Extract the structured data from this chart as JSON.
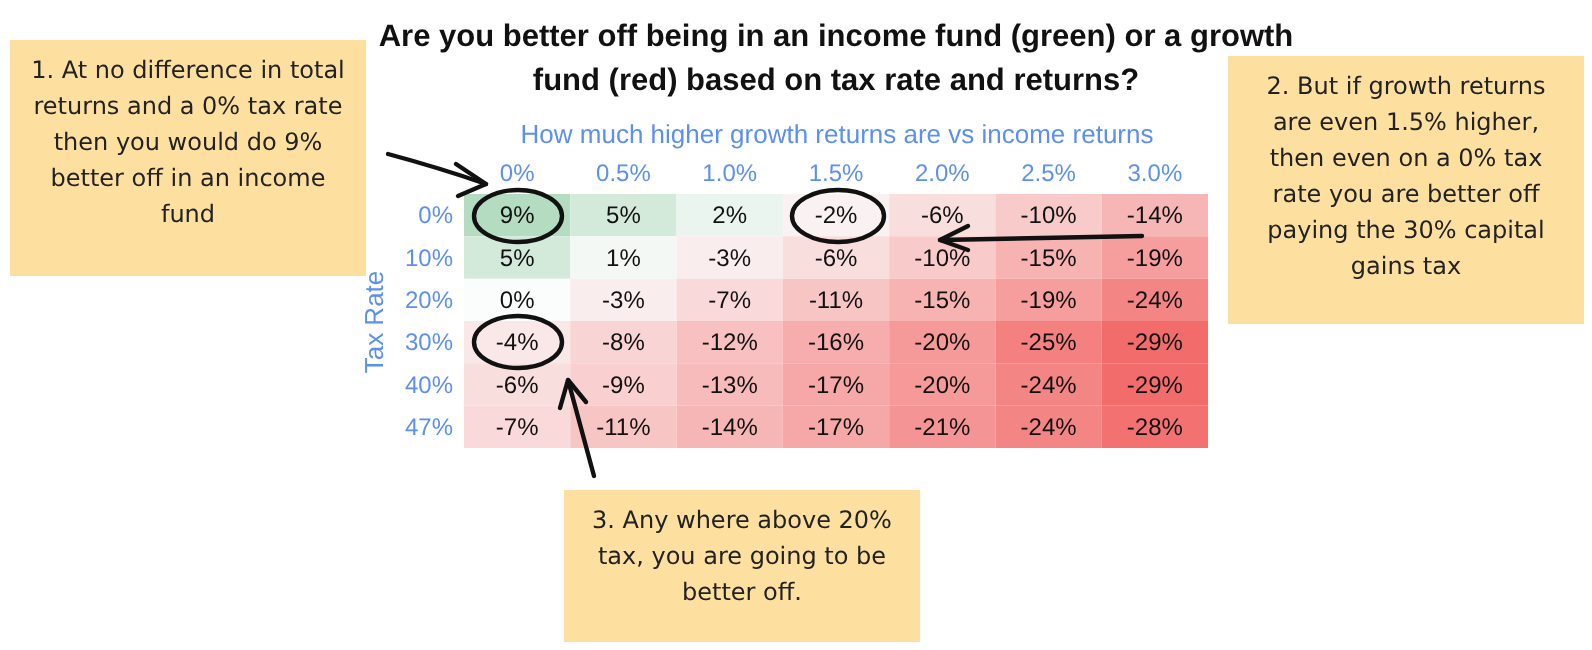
{
  "chart_data": {
    "type": "heatmap",
    "title": "Are you better off being in an income fund (green) or a growth fund (red) based on tax rate and returns?",
    "xlabel": "How much higher growth returns are vs income returns",
    "ylabel": "Tax Rate",
    "categories": [
      "0%",
      "0.5%",
      "1.0%",
      "1.5%",
      "2.0%",
      "2.5%",
      "3.0%"
    ],
    "y_categories": [
      "0%",
      "10%",
      "20%",
      "30%",
      "40%",
      "47%"
    ],
    "cells": [
      [
        9,
        5,
        2,
        -2,
        -6,
        -10,
        -14
      ],
      [
        5,
        1,
        -3,
        -6,
        -10,
        -15,
        -19
      ],
      [
        0,
        -3,
        -7,
        -11,
        -15,
        -19,
        -24
      ],
      [
        -4,
        -8,
        -12,
        -16,
        -20,
        -25,
        -29
      ],
      [
        -6,
        -9,
        -13,
        -17,
        -20,
        -24,
        -29
      ],
      [
        -7,
        -11,
        -14,
        -17,
        -21,
        -24,
        -28
      ]
    ],
    "cell_labels": [
      [
        "9%",
        "5%",
        "2%",
        "-2%",
        "-6%",
        "-10%",
        "-14%"
      ],
      [
        "5%",
        "1%",
        "-3%",
        "-6%",
        "-10%",
        "-15%",
        "-19%"
      ],
      [
        "0%",
        "-3%",
        "-7%",
        "-11%",
        "-15%",
        "-19%",
        "-24%"
      ],
      [
        "-4%",
        "-8%",
        "-12%",
        "-16%",
        "-20%",
        "-25%",
        "-29%"
      ],
      [
        "-6%",
        "-9%",
        "-13%",
        "-17%",
        "-20%",
        "-24%",
        "-29%"
      ],
      [
        "-7%",
        "-11%",
        "-14%",
        "-17%",
        "-21%",
        "-24%",
        "-28%"
      ]
    ],
    "annotations": [
      "1. At no difference in total returns and a 0% tax rate then you would do 9% better off in an income fund",
      "2. But if growth returns are even 1.5% higher, then even on a 0% tax rate you are better off paying the 30% capital gains tax",
      "3. Any where above 20% tax, you are going to be better off."
    ]
  }
}
